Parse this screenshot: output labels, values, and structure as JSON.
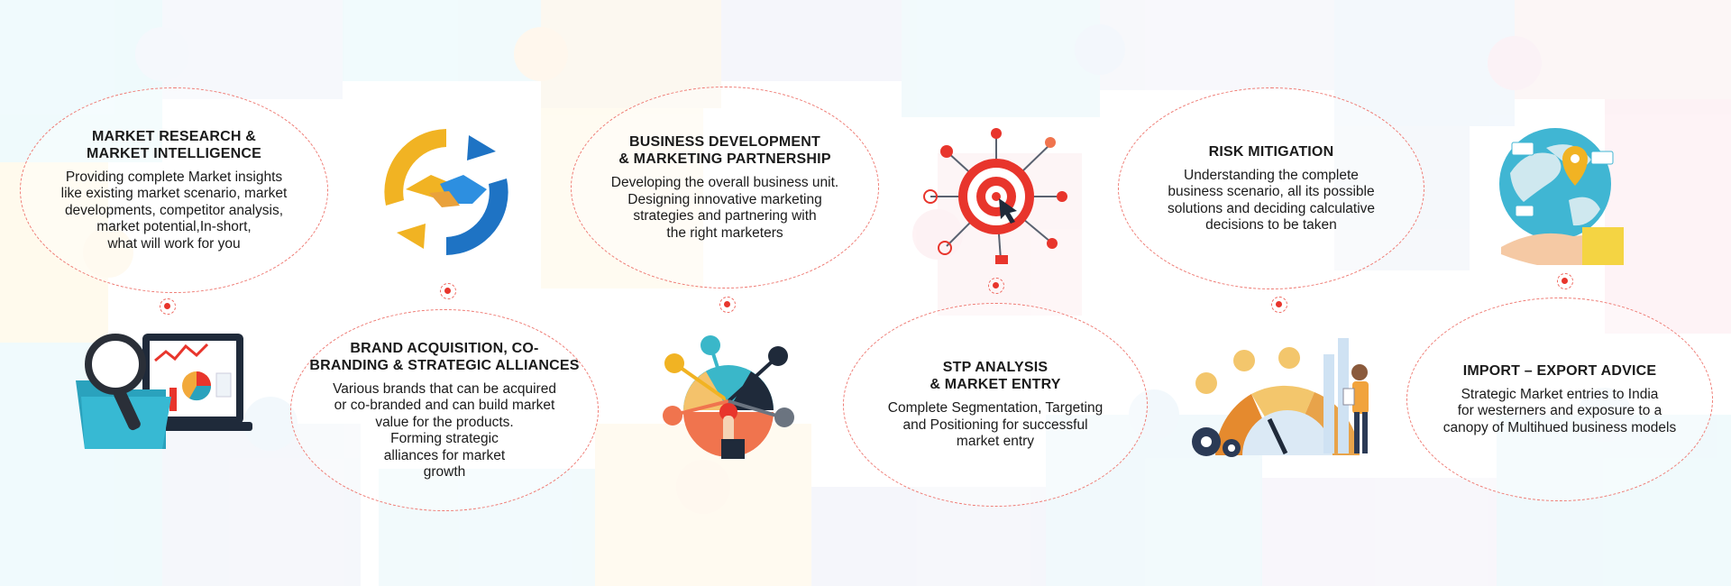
{
  "services": [
    {
      "title": "MARKET RESEARCH &\nMARKET INTELLIGENCE",
      "desc": "Providing complete Market insights\nlike existing market scenario, market\ndevelopments, competitor analysis,\nmarket potential,In-short,\nwhat will work for you",
      "icon": "market-research-illustration"
    },
    {
      "title": "BRAND ACQUISITION, CO-\nBRANDING & STRATEGIC ALLIANCES",
      "desc": "Various brands that can be acquired\nor co-branded and can build market\nvalue for the products.\nForming strategic\nalliances for market\ngrowth",
      "icon": "handshake-icon"
    },
    {
      "title": "BUSINESS DEVELOPMENT\n& MARKETING PARTNERSHIP",
      "desc": "Developing the overall business unit.\nDesigning innovative marketing\nstrategies and partnering with\nthe right marketers",
      "icon": "business-development-illustration"
    },
    {
      "title": "STP ANALYSIS\n& MARKET ENTRY",
      "desc": "Complete Segmentation, Targeting\nand Positioning for successful\nmarket entry",
      "icon": "target-icon"
    },
    {
      "title": "RISK MITIGATION",
      "desc": "Understanding the complete\nbusiness scenario, all its possible\nsolutions and deciding calculative\ndecisions to be taken",
      "icon": "risk-gauge-illustration"
    },
    {
      "title": "IMPORT – EXPORT ADVICE",
      "desc": "Strategic Market entries to India\nfor westerners and exposure to a\ncanopy of Multihued business models",
      "icon": "globe-hand-icon"
    }
  ],
  "colors": {
    "accent_red": "#e8352c",
    "dashed_border": "#ef7b74",
    "text": "#1b1b1b"
  }
}
